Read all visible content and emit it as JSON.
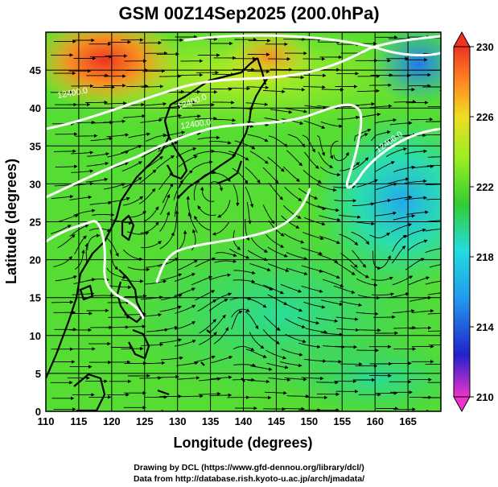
{
  "title": "GSM 00Z14Sep2025 (200.0hPa)",
  "x_axis": {
    "label": "Longitude (degrees)",
    "min": 110,
    "max": 170,
    "ticks": [
      110,
      115,
      120,
      125,
      130,
      135,
      140,
      145,
      150,
      155,
      160,
      165
    ]
  },
  "y_axis": {
    "label": "Latitude  (degrees)",
    "min": 0,
    "max": 50,
    "ticks": [
      0,
      5,
      10,
      15,
      20,
      25,
      30,
      35,
      40,
      45
    ]
  },
  "colorbar": {
    "min": 210,
    "max": 230,
    "tick_labels": [
      "230",
      "226",
      "222",
      "218",
      "214",
      "210"
    ],
    "stops": [
      "#ee33cc",
      "#2222cc",
      "#2299ee",
      "#22dddd",
      "#33cc33",
      "#99ee22",
      "#eedd22",
      "#ff8822",
      "#ee3322"
    ]
  },
  "contour_labels": [
    "12400.0",
    "12400.0",
    "12400.0",
    "12400.0"
  ],
  "credits": {
    "line1": "Drawing by DCL (https://www.gfd-dennou.org/library/dcl/)",
    "line2": "Data from http://database.rish.kyoto-u.ac.jp/arch/jmadata/"
  },
  "colors": {
    "contour": "#ffffff",
    "coast": "#000000",
    "streamline": "#000000",
    "grid": "#000000"
  }
}
